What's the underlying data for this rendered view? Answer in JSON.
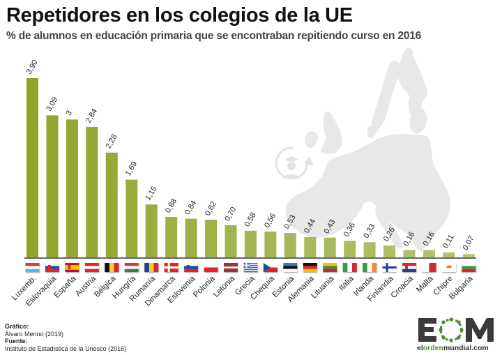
{
  "header": {
    "title": "Repetidores en los colegios de la UE",
    "subtitle": "% de alumnos en educación primaria que se encontraban repitiendo curso en 2016"
  },
  "background": {
    "map_icon": "europe-map-silhouette",
    "badge_icon": "student-graduate-repeat-icon",
    "map_color": "#e8e8e6"
  },
  "colors": {
    "bar_dark": "#8fa52a",
    "bar_light": "#b4c574",
    "baseline": "#666666"
  },
  "chart_data": {
    "type": "bar",
    "title": "Repetidores en los colegios de la UE",
    "subtitle": "% de alumnos en educación primaria que se encontraban repitiendo curso en 2016",
    "xlabel": "",
    "ylabel": "",
    "ylim": [
      0,
      3.9
    ],
    "grid": false,
    "legend": "none",
    "categories": [
      "Luxemb.",
      "Eslovaquia",
      "España",
      "Austria",
      "Bélgica",
      "Hungría",
      "Rumanía",
      "Dinamarca",
      "Eslovenia",
      "Polonia",
      "Letonia",
      "Grecia",
      "Chequia",
      "Estonia",
      "Alemania",
      "Lituania",
      "Italia",
      "Irlanda",
      "Finlandia",
      "Croacia",
      "Malta",
      "Chipre",
      "Bulgaria"
    ],
    "values": [
      3.9,
      3.09,
      3,
      2.84,
      2.28,
      1.69,
      1.15,
      0.88,
      0.84,
      0.82,
      0.7,
      0.58,
      0.56,
      0.53,
      0.44,
      0.43,
      0.36,
      0.33,
      0.26,
      0.16,
      0.16,
      0.11,
      0.07
    ],
    "value_labels": [
      "3,90",
      "3,09",
      "3",
      "2,84",
      "2,28",
      "1,69",
      "1,15",
      "0,88",
      "0,84",
      "0,82",
      "0,70",
      "0,58",
      "0,56",
      "0,53",
      "0,44",
      "0,43",
      "0,36",
      "0,33",
      "0,26",
      "0,16",
      "0,16",
      "0,11",
      "0,07"
    ],
    "flags": [
      "luxembourg-flag",
      "slovakia-flag",
      "spain-flag",
      "austria-flag",
      "belgium-flag",
      "hungary-flag",
      "romania-flag",
      "denmark-flag",
      "slovenia-flag",
      "poland-flag",
      "latvia-flag",
      "greece-flag",
      "czechia-flag",
      "estonia-flag",
      "germany-flag",
      "lithuania-flag",
      "italy-flag",
      "ireland-flag",
      "finland-flag",
      "croatia-flag",
      "malta-flag",
      "cyprus-flag",
      "bulgaria-flag"
    ]
  },
  "credits": {
    "graphic_label": "Gráfico:",
    "graphic_author": "Álvaro Merino (2019)",
    "source_label": "Fuente:",
    "source_name": "Instituto de Estadística de la Unesco (2016)"
  },
  "logo": {
    "letters": "EOM",
    "url_part1": "el",
    "url_part2": "orden",
    "url_part3": "mundial.com"
  }
}
